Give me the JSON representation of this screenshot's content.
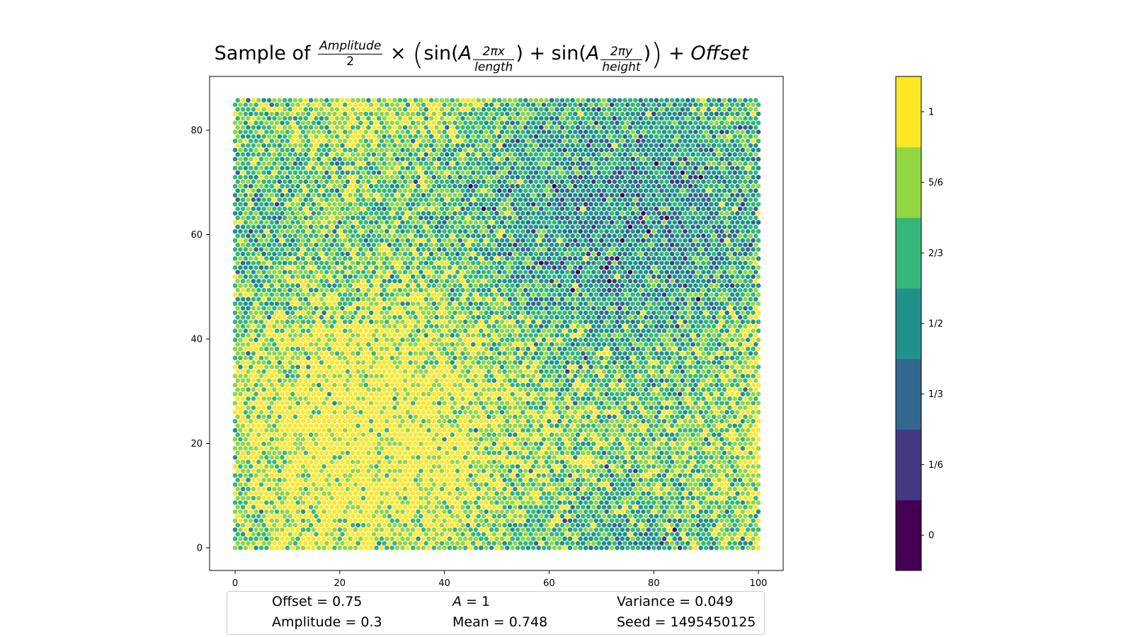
{
  "chart_data": {
    "type": "heatmap",
    "title_parts": {
      "prefix": "Sample of",
      "amp_num": "Amplitude",
      "amp_den": "2",
      "times": "×",
      "sin": "sin",
      "coef": "A",
      "x_num": "2πx",
      "x_den": "length",
      "plus": "+",
      "y_num": "2πy",
      "y_den": "height",
      "offset": "Offset"
    },
    "xlim": [
      0,
      100
    ],
    "ylim": [
      0,
      86
    ],
    "x_ticks": [
      "0",
      "20",
      "40",
      "60",
      "80",
      "100"
    ],
    "y_ticks": [
      "0",
      "20",
      "40",
      "60",
      "80"
    ],
    "x_tick_values": [
      0,
      20,
      40,
      60,
      80,
      100
    ],
    "y_tick_values": [
      0,
      20,
      40,
      60,
      80
    ],
    "grid": false,
    "marker": "hexagonal grid of circles",
    "colormap": "viridis (7 discrete levels)",
    "colorbar": {
      "levels": [
        0,
        0.1667,
        0.3333,
        0.5,
        0.6667,
        0.8333,
        1
      ],
      "labels": [
        "0",
        "1/6",
        "1/3",
        "1/2",
        "2/3",
        "5/6",
        "1"
      ],
      "colors": [
        "#440154",
        "#443983",
        "#31688e",
        "#21918c",
        "#35b779",
        "#90d743",
        "#fde725"
      ]
    },
    "parameters": {
      "offset": 0.75,
      "amplitude": 0.3,
      "A": 1,
      "mean": 0.748,
      "variance": 0.049,
      "seed": 1495450125
    }
  },
  "stats": {
    "offset": "Offset = 0.75",
    "amplitude": "Amplitude = 0.3",
    "a_label": "A",
    "a_value": " = 1",
    "mean": "Mean = 0.748",
    "variance": "Variance = 0.049",
    "seed": "Seed = 1495450125"
  }
}
